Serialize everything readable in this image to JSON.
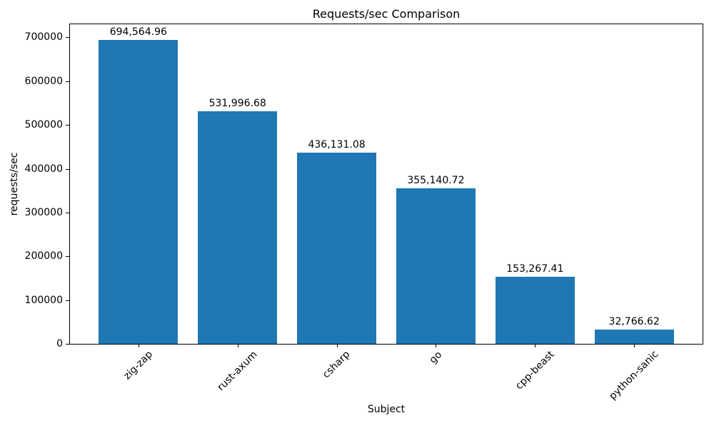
{
  "chart_data": {
    "type": "bar",
    "title": "Requests/sec Comparison",
    "xlabel": "Subject",
    "ylabel": "requests/sec",
    "categories": [
      "zig-zap",
      "rust-axum",
      "csharp",
      "go",
      "cpp-beast",
      "python-sanic"
    ],
    "values": [
      694564.96,
      531996.68,
      436131.08,
      355140.72,
      153267.41,
      32766.62
    ],
    "value_labels": [
      "694,564.96",
      "531,996.68",
      "436,131.08",
      "355,140.72",
      "153,267.41",
      "32,766.62"
    ],
    "yticks": [
      0,
      100000,
      200000,
      300000,
      400000,
      500000,
      600000,
      700000
    ],
    "ytick_labels": [
      "0",
      "100000",
      "200000",
      "300000",
      "400000",
      "500000",
      "600000",
      "700000"
    ],
    "ylim": [
      0,
      730000
    ],
    "xlim": [
      -0.69,
      5.69
    ],
    "bar_width": 0.8,
    "bar_color": "#1f77b4",
    "text_color": "#000000",
    "background": "#ffffff",
    "grid": false,
    "legend": "none",
    "x_tick_rotation": 45
  }
}
